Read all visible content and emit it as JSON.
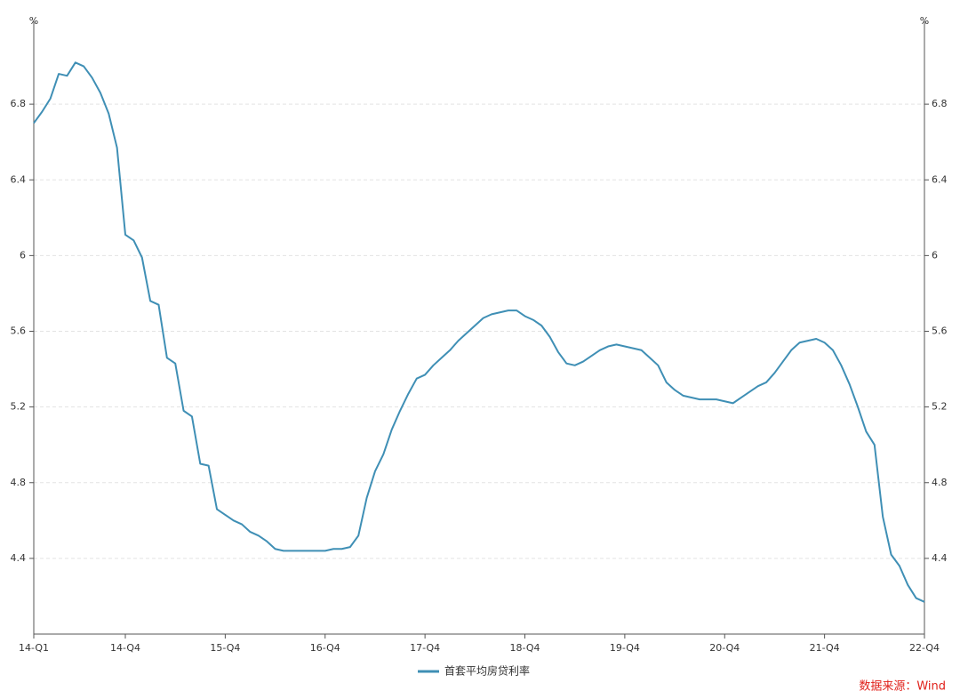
{
  "chart_data": {
    "type": "line",
    "y_label": "%",
    "y2_label": "%",
    "source": "数据来源：Wind",
    "categories": [
      "14-Q1",
      null,
      null,
      null,
      null,
      null,
      null,
      null,
      null,
      null,
      null,
      "14-Q4",
      null,
      null,
      null,
      null,
      null,
      null,
      null,
      null,
      null,
      null,
      null,
      "15-Q4",
      null,
      null,
      null,
      null,
      null,
      null,
      null,
      null,
      null,
      null,
      null,
      "16-Q4",
      null,
      null,
      null,
      null,
      null,
      null,
      null,
      null,
      null,
      null,
      null,
      "17-Q4",
      null,
      null,
      null,
      null,
      null,
      null,
      null,
      null,
      null,
      null,
      null,
      "18-Q4",
      null,
      null,
      null,
      null,
      null,
      null,
      null,
      null,
      null,
      null,
      null,
      "19-Q4",
      null,
      null,
      null,
      null,
      null,
      null,
      null,
      null,
      null,
      null,
      null,
      "20-Q4",
      null,
      null,
      null,
      null,
      null,
      null,
      null,
      null,
      null,
      null,
      null,
      "21-Q4",
      null,
      null,
      null,
      null,
      null,
      null,
      null,
      null,
      null,
      null,
      null,
      "22-Q4"
    ],
    "series": [
      {
        "name": "首套平均房贷利率",
        "color": "#3f8fb5",
        "values": [
          6.7,
          6.76,
          6.83,
          6.96,
          6.95,
          7.02,
          7.0,
          6.94,
          6.86,
          6.75,
          6.57,
          6.11,
          6.08,
          5.99,
          5.76,
          5.74,
          5.46,
          5.43,
          5.18,
          5.15,
          4.9,
          4.89,
          4.66,
          4.63,
          4.6,
          4.58,
          4.54,
          4.52,
          4.49,
          4.45,
          4.44,
          4.44,
          4.44,
          4.44,
          4.44,
          4.44,
          4.45,
          4.45,
          4.46,
          4.52,
          4.72,
          4.86,
          4.95,
          5.08,
          5.18,
          5.27,
          5.35,
          5.37,
          5.42,
          5.46,
          5.5,
          5.55,
          5.59,
          5.63,
          5.67,
          5.69,
          5.7,
          5.71,
          5.71,
          5.68,
          5.66,
          5.63,
          5.57,
          5.49,
          5.43,
          5.42,
          5.44,
          5.47,
          5.5,
          5.52,
          5.53,
          5.52,
          5.51,
          5.5,
          5.46,
          5.42,
          5.33,
          5.29,
          5.26,
          5.25,
          5.24,
          5.24,
          5.24,
          5.23,
          5.22,
          5.25,
          5.28,
          5.31,
          5.33,
          5.38,
          5.44,
          5.5,
          5.54,
          5.55,
          5.56,
          5.54,
          5.5,
          5.42,
          5.32,
          5.2,
          5.07,
          5.0,
          4.62,
          4.42,
          4.36,
          4.26,
          4.19,
          4.17
        ]
      }
    ],
    "ylim": [
      4.0,
      7.2
    ],
    "yticks": [
      4.4,
      4.8,
      5.2,
      5.6,
      6,
      6.4,
      6.8
    ],
    "y2lim": [
      4.0,
      7.2
    ],
    "y2ticks": [
      4.4,
      4.8,
      5.2,
      5.6,
      6,
      6.4,
      6.8
    ],
    "grid": true
  }
}
